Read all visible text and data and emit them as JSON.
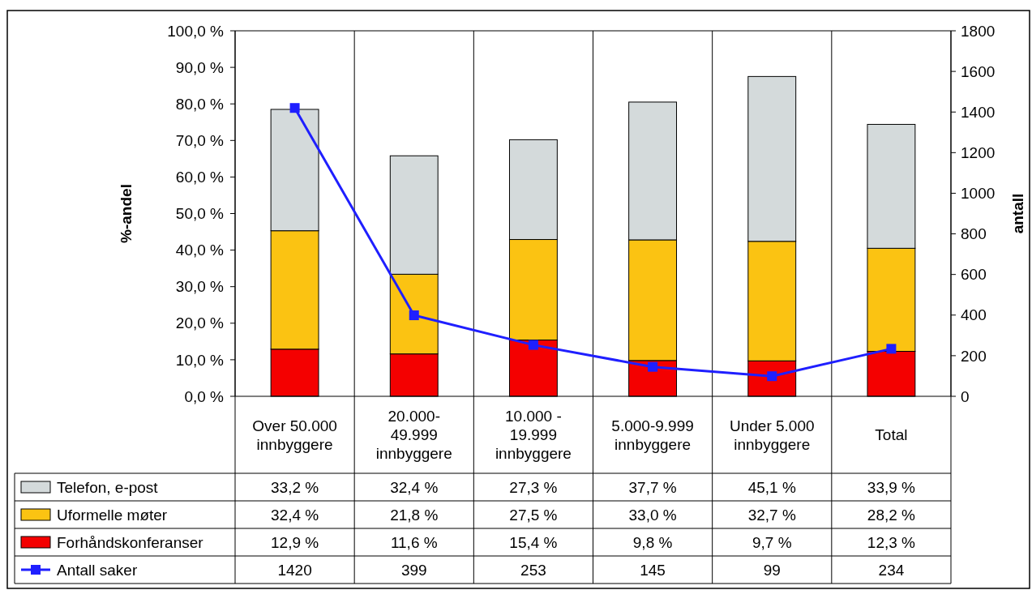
{
  "chart_data": {
    "type": "bar",
    "stacked": true,
    "categories": [
      "Over 50.000\ninnbyggere",
      "20.000-\n49.999\ninnbyggere",
      "10.000 -\n19.999\ninnbyggere",
      "5.000-9.999\ninnbyggere",
      "Under 5.000\ninnbyggere",
      "Total"
    ],
    "ylabel": "%-andel",
    "y2label": "antall",
    "ylim": [
      0,
      100
    ],
    "yticks": [
      {
        "value": 0,
        "label": "0,0 %"
      },
      {
        "value": 10,
        "label": "10,0 %"
      },
      {
        "value": 20,
        "label": "20,0 %"
      },
      {
        "value": 30,
        "label": "30,0 %"
      },
      {
        "value": 40,
        "label": "40,0 %"
      },
      {
        "value": 50,
        "label": "50,0 %"
      },
      {
        "value": 60,
        "label": "60,0 %"
      },
      {
        "value": 70,
        "label": "70,0 %"
      },
      {
        "value": 80,
        "label": "80,0 %"
      },
      {
        "value": 90,
        "label": "90,0 %"
      },
      {
        "value": 100,
        "label": "100,0 %"
      }
    ],
    "y2lim": [
      0,
      1800
    ],
    "y2ticks": [
      0,
      200,
      400,
      600,
      800,
      1000,
      1200,
      1400,
      1600,
      1800
    ],
    "legend": "bottom",
    "grid": false,
    "series": [
      {
        "name": "Forhåndskonferanser",
        "color": "#f40000",
        "values": [
          12.9,
          11.6,
          15.4,
          9.8,
          9.7,
          12.3
        ],
        "value_labels": [
          "12,9 %",
          "11,6 %",
          "15,4 %",
          "9,8 %",
          "9,7 %",
          "12,3 %"
        ]
      },
      {
        "name": "Uformelle møter",
        "color": "#fbc312",
        "values": [
          32.4,
          21.8,
          27.5,
          33.0,
          32.7,
          28.2
        ],
        "value_labels": [
          "32,4 %",
          "21,8 %",
          "27,5 %",
          "33,0 %",
          "32,7 %",
          "28,2 %"
        ]
      },
      {
        "name": "Telefon, e-post",
        "color": "#d4dadb",
        "values": [
          33.2,
          32.4,
          27.3,
          37.7,
          45.1,
          33.9
        ],
        "value_labels": [
          "33,2 %",
          "32,4 %",
          "27,3 %",
          "37,7 %",
          "45,1 %",
          "33,9 %"
        ]
      },
      {
        "name": "Antall saker",
        "type": "line",
        "axis": "y2",
        "marker": "square",
        "line_style": "solid",
        "color": "#1f1fff",
        "values": [
          1420,
          399,
          253,
          145,
          99,
          234
        ],
        "value_labels": [
          "1420",
          "399",
          "253",
          "145",
          "99",
          "234"
        ]
      }
    ]
  }
}
